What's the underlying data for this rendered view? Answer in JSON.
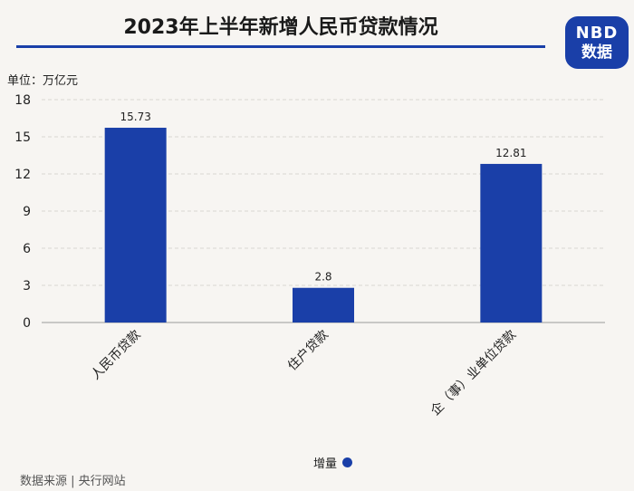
{
  "header": {
    "title": "2023年上半年新增人民币贷款情况",
    "logo_line1": "NBD",
    "logo_line2": "数据"
  },
  "unit_label": "单位：万亿元",
  "legend": {
    "label": "增量",
    "color": "#1a3fa8"
  },
  "source": "数据来源 | 央行网站",
  "chart_data": {
    "type": "bar",
    "categories": [
      "人民币贷款",
      "住户贷款",
      "企（事）业单位贷款"
    ],
    "series": [
      {
        "name": "增量",
        "values": [
          15.73,
          2.8,
          12.81
        ],
        "color": "#1a3fa8"
      }
    ],
    "ylim": [
      0,
      18
    ],
    "yticks": [
      0,
      3,
      6,
      9,
      12,
      15,
      18
    ],
    "data_labels": [
      "15.73",
      "2.8",
      "12.81"
    ],
    "grid": true,
    "legend_position": "bottom"
  }
}
